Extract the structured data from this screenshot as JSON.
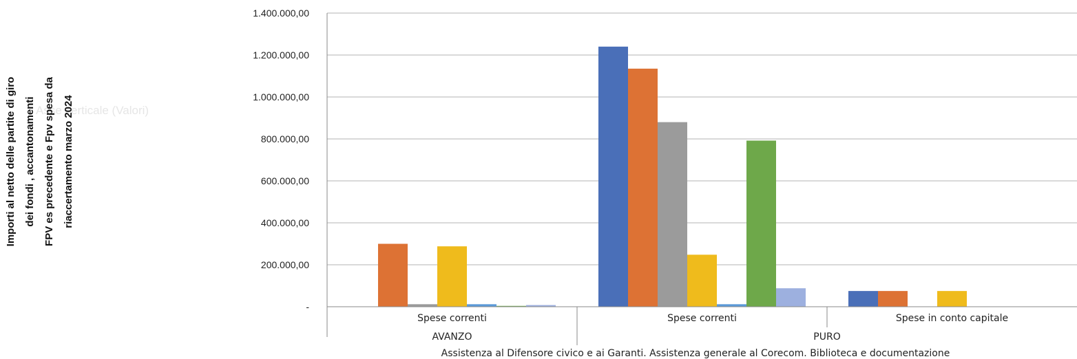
{
  "chart_data": {
    "type": "bar",
    "ylabel_lines": [
      "Importi al netto delle partite di giro",
      "dei fondi , accantonamenti",
      "FPV es precedente e Fpv spesa da",
      "riaccertamento marzo 2024"
    ],
    "axis_hint": "Asse verticale (Valori)",
    "xlabel": "Assistenza al Difensore civico e ai Garanti. Assistenza generale al Corecom. Biblioteca e documentazione",
    "ylim": [
      0,
      1400000
    ],
    "yticks": [
      {
        "value": 0,
        "label": "-"
      },
      {
        "value": 200000,
        "label": "200.000,00"
      },
      {
        "value": 400000,
        "label": "400.000,00"
      },
      {
        "value": 600000,
        "label": "600.000,00"
      },
      {
        "value": 800000,
        "label": "800.000,00"
      },
      {
        "value": 1000000,
        "label": "1.000.000,00"
      },
      {
        "value": 1200000,
        "label": "1.200.000,00"
      },
      {
        "value": 1400000,
        "label": "1.400.000,00"
      }
    ],
    "categories": [
      "Spese correnti",
      "Spese correnti",
      "Spese in conto capitale"
    ],
    "groups": [
      {
        "label": "AVANZO",
        "span": 1
      },
      {
        "label": "PURO",
        "span": 2
      }
    ],
    "grid": true,
    "legend": "none",
    "series": [
      {
        "color": "#4a6fb8",
        "values": [
          0,
          1240000,
          75000
        ]
      },
      {
        "color": "#dd7234",
        "values": [
          300000,
          1135000,
          75000
        ]
      },
      {
        "color": "#9b9b9b",
        "values": [
          12000,
          880000,
          0
        ]
      },
      {
        "color": "#efbb1c",
        "values": [
          288000,
          248000,
          75000
        ]
      },
      {
        "color": "#5c9ad8",
        "values": [
          12000,
          12000,
          0
        ]
      },
      {
        "color": "#6ea84a",
        "values": [
          4000,
          792000,
          0
        ]
      },
      {
        "color": "#9db0df",
        "values": [
          8000,
          88000,
          0
        ]
      }
    ]
  }
}
